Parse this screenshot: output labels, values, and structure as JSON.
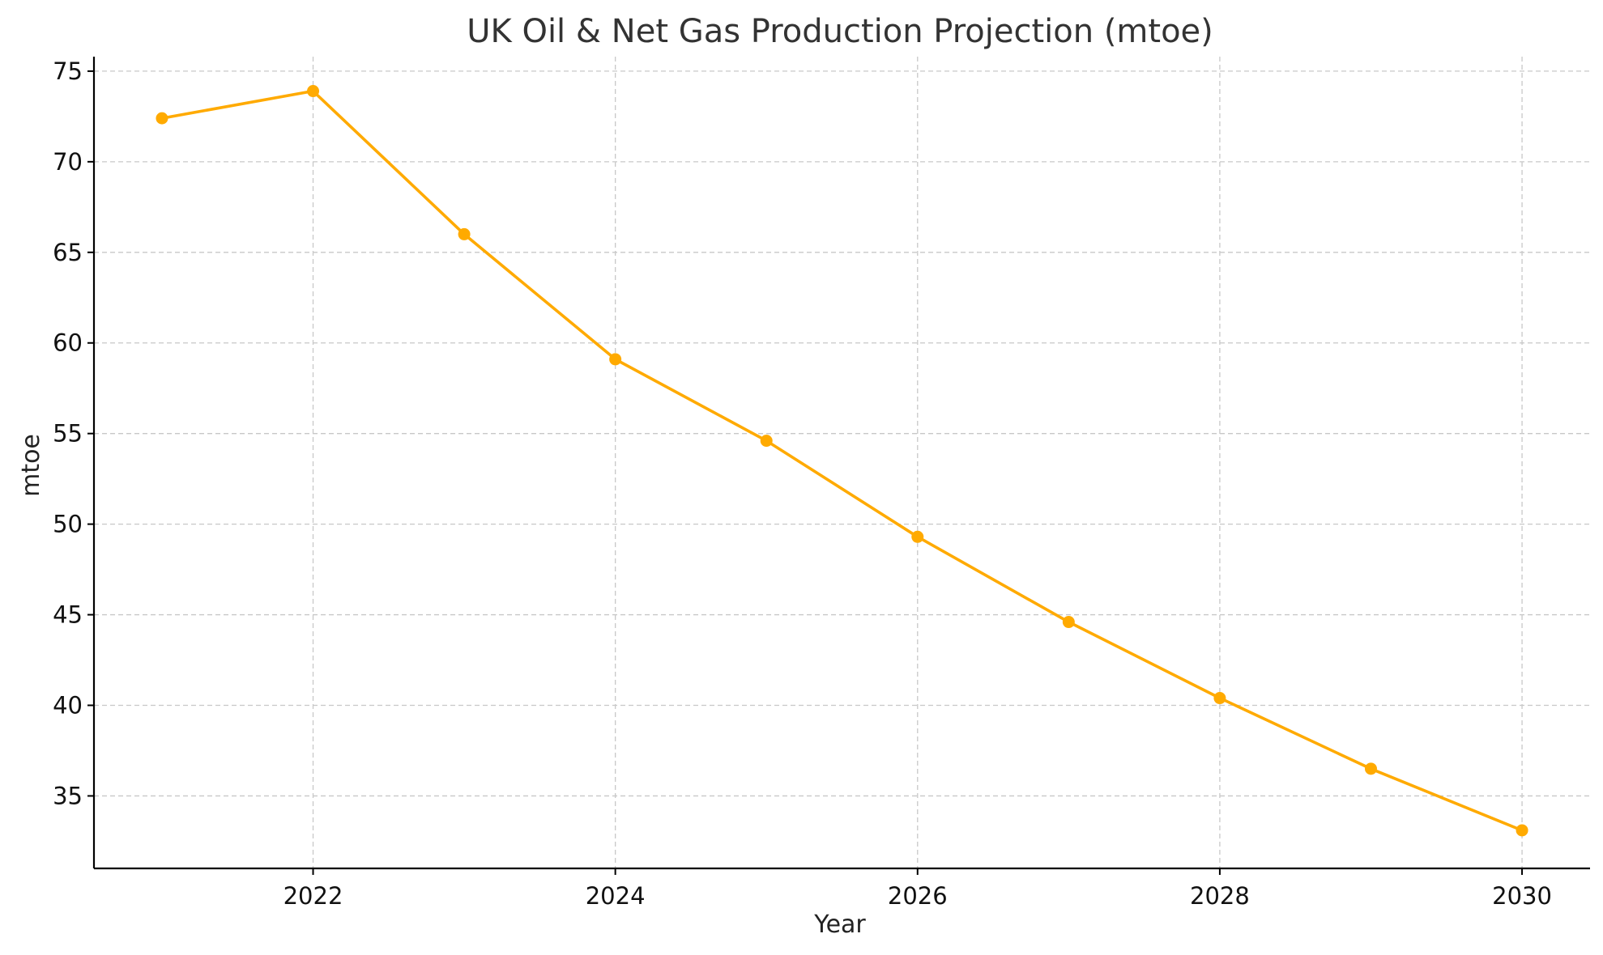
{
  "chart_data": {
    "type": "line",
    "title": "UK Oil & Net Gas Production Projection (mtoe)",
    "xlabel": "Year",
    "ylabel": "mtoe",
    "xlim": [
      2020.55,
      2030.45
    ],
    "ylim": [
      31.0,
      75.8
    ],
    "xticks": [
      2022,
      2024,
      2026,
      2028,
      2030
    ],
    "yticks": [
      35,
      40,
      45,
      50,
      55,
      60,
      65,
      70,
      75
    ],
    "grid": true,
    "series": [
      {
        "name": "UK Oil & Net Gas Production",
        "color": "#FFAA00",
        "x": [
          2021,
          2022,
          2023,
          2024,
          2025,
          2026,
          2027,
          2028,
          2029,
          2030
        ],
        "y": [
          72.4,
          73.9,
          66.0,
          59.1,
          54.6,
          49.3,
          44.6,
          40.4,
          36.5,
          33.1
        ]
      }
    ]
  }
}
